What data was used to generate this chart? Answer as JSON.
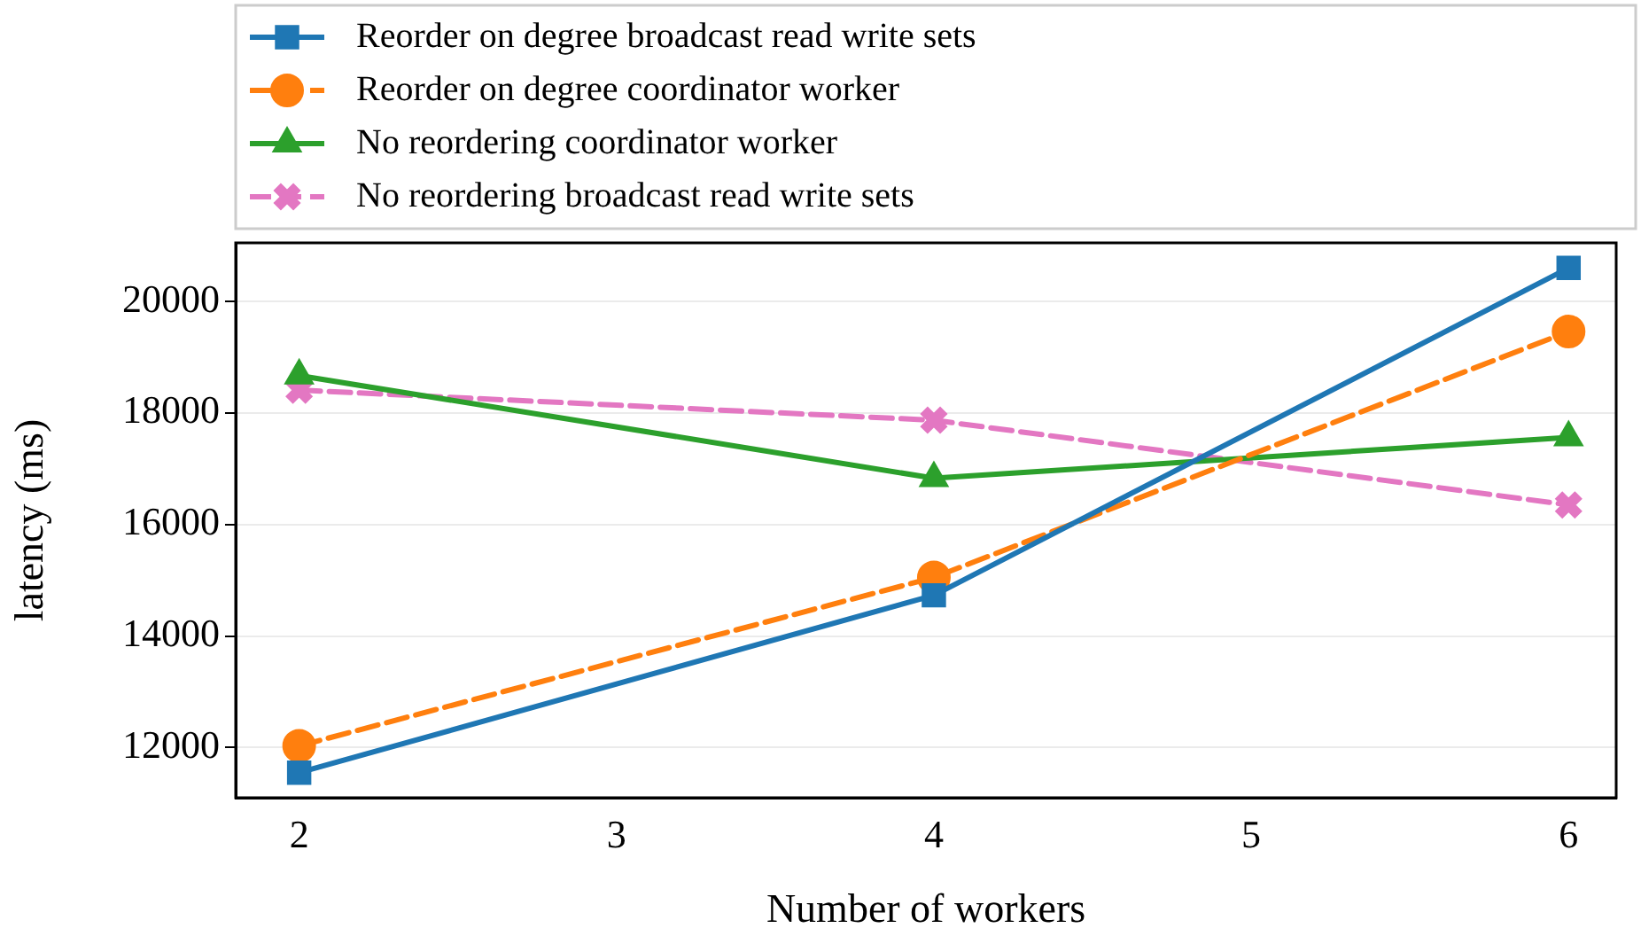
{
  "chart_data": {
    "type": "line",
    "xlabel": "Number of workers",
    "ylabel": "latency (ms)",
    "x": [
      2,
      4,
      6
    ],
    "xlim": [
      1.8,
      6.15
    ],
    "xticks": [
      2,
      3,
      4,
      5,
      6
    ],
    "ylim": [
      11100,
      21050
    ],
    "yticks": [
      12000,
      14000,
      16000,
      18000,
      20000
    ],
    "grid": "y",
    "legend": "top left",
    "series": [
      {
        "name": "Reorder on degree broadcast read write sets",
        "color": "#1f77b4",
        "marker": "square",
        "line_style": "solid",
        "values": [
          11550,
          14730,
          20600
        ]
      },
      {
        "name": "Reorder on degree coordinator worker",
        "color": "#ff7f0e",
        "marker": "circle",
        "line_style": "dashed",
        "values": [
          12030,
          15050,
          19460
        ]
      },
      {
        "name": "No reordering coordinator worker",
        "color": "#2ca02c",
        "marker": "triangle",
        "line_style": "solid",
        "values": [
          18670,
          16830,
          17560
        ]
      },
      {
        "name": "No reordering broadcast read write sets",
        "color": "#e377c2",
        "marker": "cross",
        "line_style": "dashed",
        "values": [
          18410,
          17870,
          16350
        ]
      }
    ]
  }
}
